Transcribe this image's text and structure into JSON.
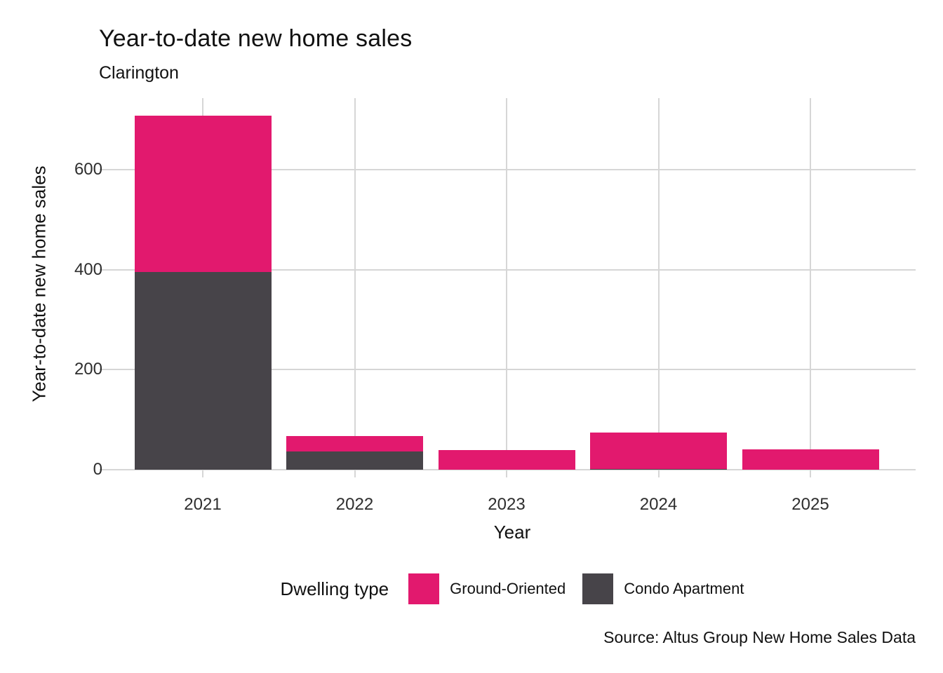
{
  "title": "Year-to-date new home sales",
  "subtitle": "Clarington",
  "caption": "Source: Altus Group New Home Sales Data",
  "legend": {
    "title": "Dwelling type",
    "items": [
      {
        "label": "Ground-Oriented",
        "color": "#e2196e"
      },
      {
        "label": "Condo Apartment",
        "color": "#474449"
      }
    ]
  },
  "colors": {
    "ground_oriented": "#e2196e",
    "condo_apartment": "#474449",
    "gridline": "#d6d6d6",
    "text": "#111111"
  },
  "chart_data": {
    "type": "bar",
    "stacked": true,
    "title": "Year-to-date new home sales",
    "subtitle": "Clarington",
    "xlabel": "Year",
    "ylabel": "Year-to-date new home sales",
    "categories": [
      "2021",
      "2022",
      "2023",
      "2024",
      "2025"
    ],
    "series": [
      {
        "name": "Ground-Oriented",
        "color": "#e2196e",
        "values": [
          312,
          31,
          39,
          72,
          40
        ]
      },
      {
        "name": "Condo Apartment",
        "color": "#474449",
        "values": [
          396,
          36,
          0,
          2,
          0
        ]
      }
    ],
    "totals": [
      708,
      67,
      39,
      74,
      40
    ],
    "yticks": [
      0,
      200,
      400,
      600
    ],
    "ylim": [
      0,
      743
    ],
    "grid": true,
    "legend_position": "bottom",
    "caption": "Source: Altus Group New Home Sales Data"
  }
}
